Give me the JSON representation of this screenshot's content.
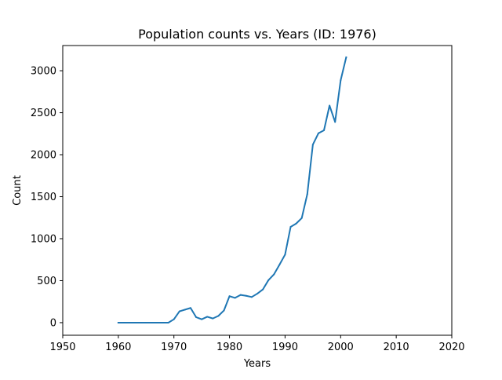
{
  "chart_data": {
    "type": "line",
    "title": "Population counts vs. Years (ID: 1976)",
    "xlabel": "Years",
    "ylabel": "Count",
    "xlim": [
      1950,
      2020
    ],
    "ylim": [
      -150,
      3300
    ],
    "xticks": [
      1950,
      1960,
      1970,
      1980,
      1990,
      2000,
      2010,
      2020
    ],
    "yticks": [
      0,
      500,
      1000,
      1500,
      2000,
      2500,
      3000
    ],
    "grid": false,
    "series": [
      {
        "color": "#1f77b4",
        "x": [
          1960,
          1961,
          1962,
          1963,
          1964,
          1965,
          1966,
          1967,
          1968,
          1969,
          1970,
          1971,
          1972,
          1973,
          1974,
          1975,
          1976,
          1977,
          1978,
          1979,
          1980,
          1981,
          1982,
          1983,
          1984,
          1985,
          1986,
          1987,
          1988,
          1989,
          1990,
          1991,
          1992,
          1993,
          1994,
          1995,
          1996,
          1997,
          1998,
          1999,
          2000,
          2001
        ],
        "y": [
          0,
          0,
          0,
          0,
          0,
          0,
          0,
          0,
          0,
          0,
          40,
          135,
          155,
          175,
          65,
          40,
          70,
          50,
          80,
          145,
          315,
          295,
          330,
          320,
          305,
          345,
          395,
          505,
          575,
          690,
          810,
          1140,
          1180,
          1245,
          1530,
          2120,
          2255,
          2290,
          2585,
          2390,
          2885,
          3160
        ]
      }
    ]
  }
}
